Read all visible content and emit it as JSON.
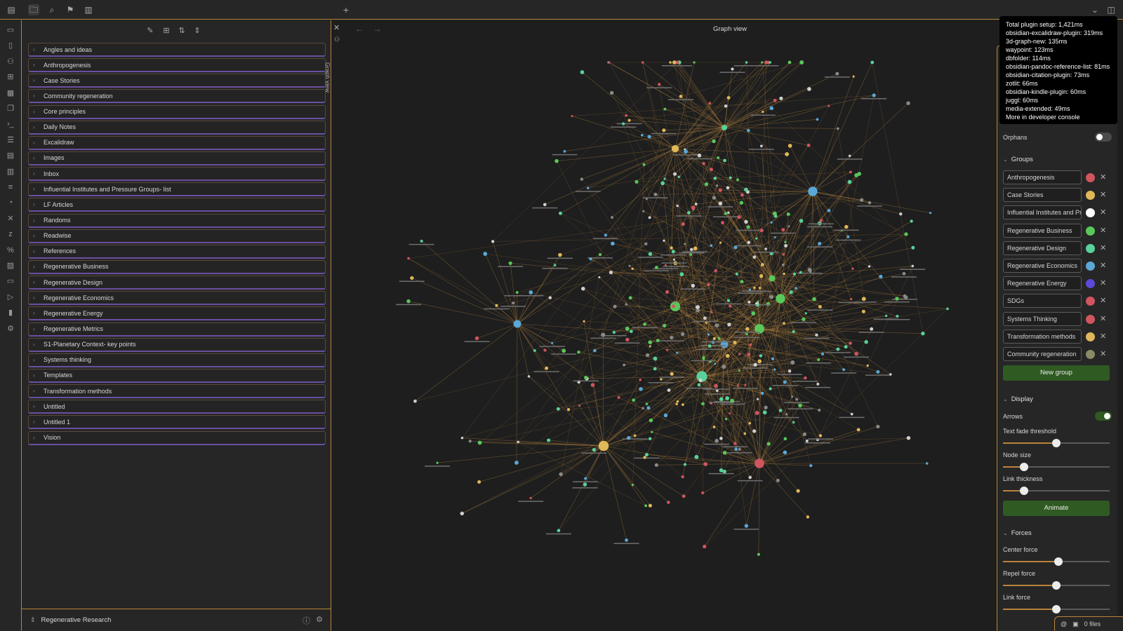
{
  "topbar": {
    "icons": [
      "sidebar-toggle-icon",
      "folder-icon",
      "search-icon",
      "bookmark-icon",
      "book-icon"
    ],
    "new_tab": "+",
    "chevron": "⌄",
    "right_icon": "sidebar-right-icon"
  },
  "ribbon": {
    "icons": [
      "file-icon",
      "files-icon",
      "graph-icon",
      "grid-icon",
      "calendar-icon",
      "copy-icon",
      "terminal-icon",
      "list-icon",
      "form-icon",
      "layout-icon",
      "table-icon",
      "history-icon",
      "tools-icon",
      "zotero-icon",
      "percent-icon",
      "images-icon",
      "layers-icon",
      "play-icon",
      "canvas-icon",
      "settings-icon"
    ]
  },
  "sidebar": {
    "folders": [
      "Angles and ideas",
      "Anthropogenesis",
      "Case Stories",
      "Community regeneration",
      "Core principles",
      "Daily Notes",
      "Excalidraw",
      "Images",
      "Inbox",
      "Influential Institutes and Pressure Groups- list",
      "LF Articles",
      "Randoms",
      "Readwise",
      "References",
      "Regenerative Business",
      "Regenerative Design",
      "Regenerative Economics",
      "Regenerative Energy",
      "Regenerative Metrics",
      "S1-Planetary Context- key points",
      "Systems thinking",
      "Templates",
      "Transformation methods",
      "Untitled",
      "Untitled 1",
      "Vision"
    ],
    "vault_name": "Regenerative Research"
  },
  "main": {
    "tab_label": "Graph view",
    "title": "Graph view"
  },
  "perf": [
    "Total plugin setup: 1,421ms",
    "obsidian-excalidraw-plugin: 319ms",
    "3d-graph-new: 135ms",
    "waypoint: 123ms",
    "dbfolder: 114ms",
    "obsidian-pandoc-reference-list: 81ms",
    "obsidian-citation-plugin: 73ms",
    "zotlit: 66ms",
    "obsidian-kindle-plugin: 60ms",
    "juggl: 60ms",
    "media-extended: 49ms",
    "More in developer console"
  ],
  "panel": {
    "orphans_label": "Orphans",
    "orphans_on": false,
    "groups_title": "Groups",
    "groups": [
      {
        "name": "Anthropogenesis",
        "color": "#d0555f"
      },
      {
        "name": "Case Stories",
        "color": "#e0b85a"
      },
      {
        "name": "Influential Institutes and Pressure Groups",
        "color": "#ffffff"
      },
      {
        "name": "Regenerative Business",
        "color": "#58c85a"
      },
      {
        "name": "Regenerative Design",
        "color": "#5ad09a"
      },
      {
        "name": "Regenerative Economics",
        "color": "#5aa8d8"
      },
      {
        "name": "Regenerative Energy",
        "color": "#5a4ad8"
      },
      {
        "name": "SDGs",
        "color": "#d0555f"
      },
      {
        "name": "Systems Thinking",
        "color": "#d0555f"
      },
      {
        "name": "Transformation methods",
        "color": "#e0b85a"
      },
      {
        "name": "Community regeneration",
        "color": "#8a8a68"
      }
    ],
    "new_group": "New group",
    "display_title": "Display",
    "arrows_label": "Arrows",
    "arrows_on": true,
    "text_fade": {
      "label": "Text fade threshold",
      "value": 0.5
    },
    "node_size": {
      "label": "Node size",
      "value": 0.2
    },
    "link_thickness": {
      "label": "Link thickness",
      "value": 0.2
    },
    "animate": "Animate",
    "forces_title": "Forces",
    "center_force": {
      "label": "Center force",
      "value": 0.52
    },
    "repel_force": {
      "label": "Repel force",
      "value": 0.5
    },
    "link_force": {
      "label": "Link force",
      "value": 0.5
    }
  },
  "status": {
    "files": "0 files"
  },
  "colors": {
    "accent": "#b8843a",
    "link": "#c89040",
    "bg": "#1e1e1e"
  }
}
